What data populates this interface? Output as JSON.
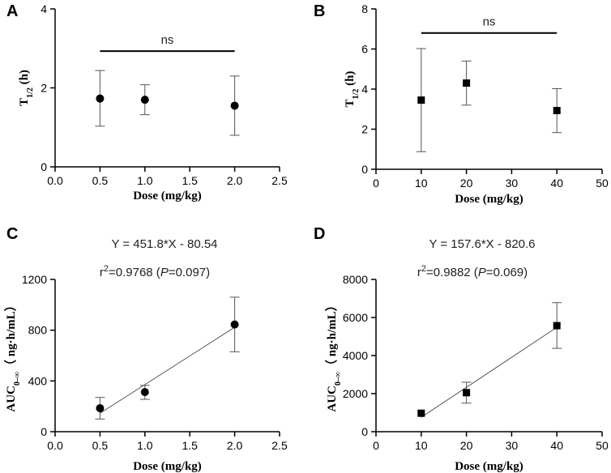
{
  "chart_data": [
    {
      "panel": "A",
      "type": "scatter",
      "marker": "circle",
      "xlabel": "Dose  (mg/kg)",
      "ylabel_main": "T",
      "ylabel_sub": "1/2",
      "ylabel_unit": " (h)",
      "xlim": [
        0,
        2.5
      ],
      "ylim": [
        0,
        4
      ],
      "xticks": [
        0,
        0.5,
        1,
        1.5,
        2,
        2.5
      ],
      "xtick_labels": [
        "0.0",
        "0.5",
        "1.0",
        "1.5",
        "2.0",
        "2.5"
      ],
      "yticks": [
        0,
        2,
        4
      ],
      "ytick_labels": [
        "0",
        "2",
        "4"
      ],
      "points": [
        {
          "x": 0.5,
          "y": 1.73,
          "lo": 1.03,
          "hi": 2.44
        },
        {
          "x": 1.0,
          "y": 1.7,
          "lo": 1.32,
          "hi": 2.08
        },
        {
          "x": 2.0,
          "y": 1.55,
          "lo": 0.8,
          "hi": 2.3
        }
      ],
      "significance": {
        "label": "ns",
        "x_from": 0.5,
        "x_to": 2.0,
        "y": 2.93
      }
    },
    {
      "panel": "B",
      "type": "scatter",
      "marker": "square",
      "xlabel": "Dose (mg/kg)",
      "ylabel_main": "T",
      "ylabel_sub": "1/2",
      "ylabel_unit": " (h)",
      "xlim": [
        0,
        50
      ],
      "ylim": [
        0,
        8
      ],
      "xticks": [
        0,
        10,
        20,
        30,
        40,
        50
      ],
      "xtick_labels": [
        "0",
        "10",
        "20",
        "30",
        "40",
        "50"
      ],
      "yticks": [
        0,
        2,
        4,
        6,
        8
      ],
      "ytick_labels": [
        "0",
        "2",
        "4",
        "6",
        "8"
      ],
      "points": [
        {
          "x": 10,
          "y": 3.45,
          "lo": 0.88,
          "hi": 6.02
        },
        {
          "x": 20,
          "y": 4.3,
          "lo": 3.2,
          "hi": 5.4
        },
        {
          "x": 40,
          "y": 2.93,
          "lo": 1.83,
          "hi": 4.02
        }
      ],
      "significance": {
        "label": "ns",
        "x_from": 10,
        "x_to": 40,
        "y": 6.8
      }
    },
    {
      "panel": "C",
      "type": "scatter",
      "marker": "circle",
      "xlabel": "Dose  (mg/kg)",
      "ylabel_main": "AUC",
      "ylabel_sub": "0–∞",
      "ylabel_unit": "（ ng·h/mL）",
      "xlim": [
        0,
        2.5
      ],
      "ylim": [
        0,
        1200
      ],
      "xticks": [
        0,
        0.5,
        1,
        1.5,
        2,
        2.5
      ],
      "xtick_labels": [
        "0.0",
        "0.5",
        "1.0",
        "1.5",
        "2.0",
        "2.5"
      ],
      "yticks": [
        0,
        400,
        800,
        1200
      ],
      "ytick_labels": [
        "0",
        "400",
        "800",
        "1200"
      ],
      "points": [
        {
          "x": 0.5,
          "y": 185,
          "lo": 100,
          "hi": 270
        },
        {
          "x": 1.0,
          "y": 312,
          "lo": 255,
          "hi": 365
        },
        {
          "x": 2.0,
          "y": 845,
          "lo": 630,
          "hi": 1060
        }
      ],
      "fit": {
        "slope": 451.8,
        "intercept": -80.54,
        "x_from": 0.5,
        "x_to": 2.0
      },
      "equation": "Y = 451.8*X - 80.54",
      "r2_prefix": "r",
      "r2_sup": "2",
      "r2_value": "=0.9768 (",
      "p_label": "P",
      "p_value": "=0.097)"
    },
    {
      "panel": "D",
      "type": "scatter",
      "marker": "square",
      "xlabel": "Dose (mg/kg)",
      "ylabel_main": "AUC",
      "ylabel_sub": "0–∞",
      "ylabel_unit": "（ ng·h/mL）",
      "xlim": [
        0,
        50
      ],
      "ylim": [
        0,
        8000
      ],
      "xticks": [
        0,
        10,
        20,
        30,
        40,
        50
      ],
      "xtick_labels": [
        "0",
        "10",
        "20",
        "30",
        "40",
        "50"
      ],
      "yticks": [
        0,
        2000,
        4000,
        6000,
        8000
      ],
      "ytick_labels": [
        "0",
        "2000",
        "4000",
        "6000",
        "8000"
      ],
      "points": [
        {
          "x": 10,
          "y": 970,
          "lo": 970,
          "hi": 970
        },
        {
          "x": 20,
          "y": 2050,
          "lo": 1500,
          "hi": 2600
        },
        {
          "x": 40,
          "y": 5570,
          "lo": 4380,
          "hi": 6780
        }
      ],
      "fit": {
        "slope": 157.6,
        "intercept": -820.6,
        "x_from": 10,
        "x_to": 40
      },
      "equation": "Y = 157.6*X - 820.6",
      "r2_prefix": "r",
      "r2_sup": "2",
      "r2_value": "=0.9882 (",
      "p_label": "P",
      "p_value": "=0.069)"
    }
  ]
}
